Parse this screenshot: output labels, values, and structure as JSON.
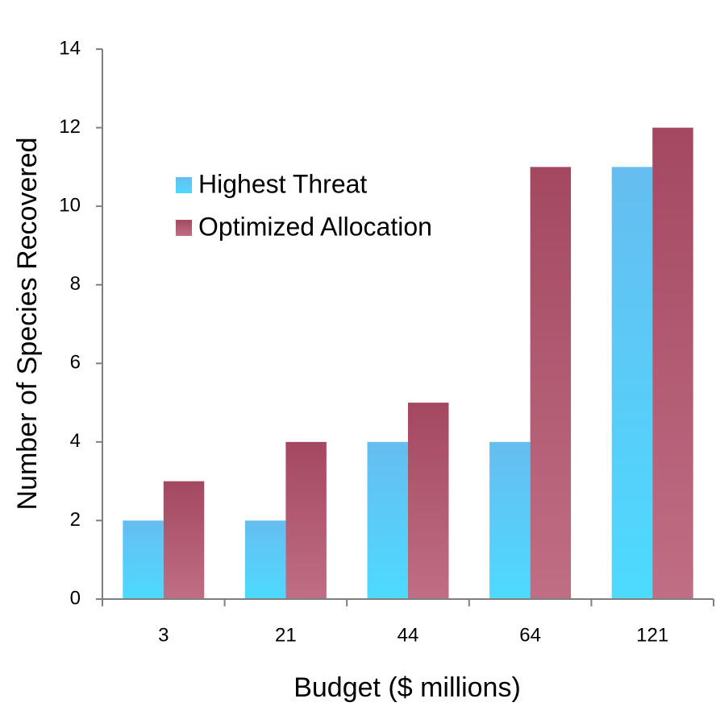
{
  "chart_data": {
    "type": "bar",
    "title": "",
    "xlabel": "Budget ($ millions)",
    "ylabel": "Number of Species Recovered",
    "categories": [
      "3",
      "21",
      "44",
      "64",
      "121"
    ],
    "ylim": [
      0,
      14
    ],
    "yticks": [
      "0",
      "2",
      "4",
      "6",
      "8",
      "10",
      "12",
      "14"
    ],
    "grid": false,
    "legend_position": "top-left",
    "series": [
      {
        "name": "Highest Threat",
        "values": [
          2,
          2,
          4,
          4,
          11
        ],
        "color_top": "#66bdf0",
        "color_bottom": "#4ddaff"
      },
      {
        "name": "Optimized Allocation",
        "values": [
          3,
          4,
          5,
          11,
          12
        ],
        "color_top": "#a44862",
        "color_bottom": "#c06e85"
      }
    ]
  }
}
